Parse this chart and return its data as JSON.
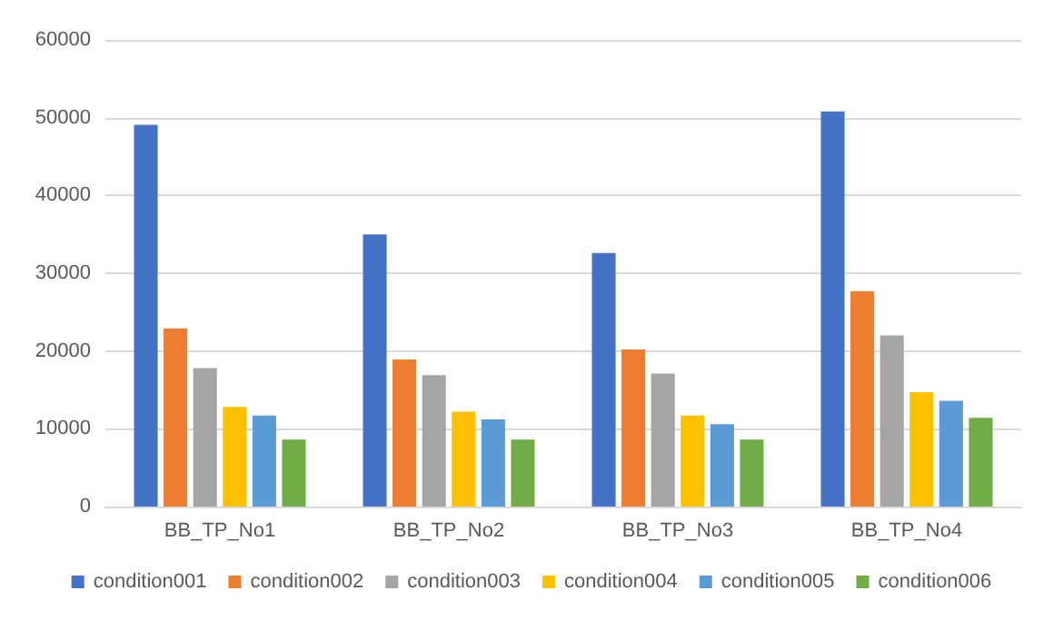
{
  "chart_data": {
    "type": "bar",
    "categories": [
      "BB_TP_No1",
      "BB_TP_No2",
      "BB_TP_No3",
      "BB_TP_No4"
    ],
    "series": [
      {
        "name": "condition001",
        "color": "#4472c4",
        "values": [
          49100,
          35000,
          32600,
          50800
        ]
      },
      {
        "name": "condition002",
        "color": "#ed7d31",
        "values": [
          22900,
          18900,
          20200,
          27700
        ]
      },
      {
        "name": "condition003",
        "color": "#a5a5a5",
        "values": [
          17800,
          16900,
          17100,
          22000
        ]
      },
      {
        "name": "condition004",
        "color": "#ffc000",
        "values": [
          12800,
          12200,
          11700,
          14700
        ]
      },
      {
        "name": "condition005",
        "color": "#5b9bd5",
        "values": [
          11700,
          11200,
          10600,
          13600
        ]
      },
      {
        "name": "condition006",
        "color": "#70ad47",
        "values": [
          8600,
          8600,
          8600,
          11400
        ]
      }
    ],
    "ylim": [
      0,
      60000
    ],
    "yticks": [
      0,
      10000,
      20000,
      30000,
      40000,
      50000,
      60000
    ],
    "grid": "y",
    "legend": "bottom"
  }
}
